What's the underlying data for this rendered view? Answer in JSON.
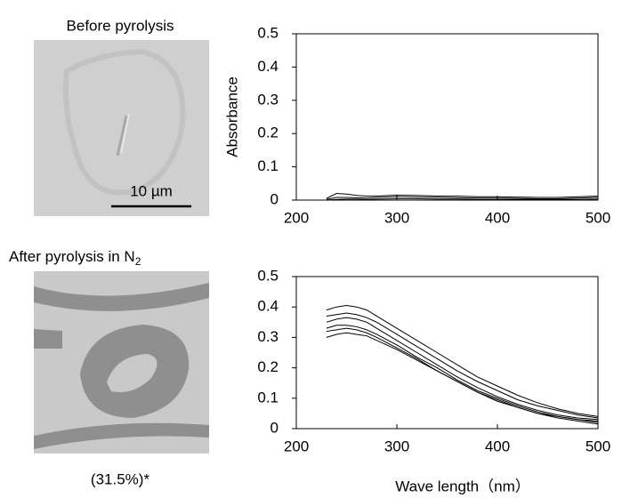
{
  "chart_data": [
    {
      "type": "line",
      "ylabel": "Absorbance",
      "x": [
        230,
        240,
        250,
        260,
        270,
        280,
        300,
        320,
        340,
        360,
        380,
        400,
        420,
        440,
        460,
        480,
        500
      ],
      "series": [
        {
          "color": "#000000",
          "values": [
            0.005,
            0.02,
            0.018,
            0.014,
            0.012,
            0.012,
            0.015,
            0.014,
            0.012,
            0.012,
            0.01,
            0.01,
            0.009,
            0.008,
            0.008,
            0.01,
            0.012
          ]
        },
        {
          "color": "#000000",
          "values": [
            0.002,
            0.008,
            0.008,
            0.007,
            0.006,
            0.008,
            0.01,
            0.009,
            0.008,
            0.007,
            0.006,
            0.006,
            0.005,
            0.004,
            0.004,
            0.006,
            0.008
          ]
        },
        {
          "color": "#000000",
          "values": [
            0.0,
            0.002,
            0.003,
            0.003,
            0.002,
            0.003,
            0.004,
            0.004,
            0.003,
            0.003,
            0.002,
            0.002,
            0.002,
            0.003,
            0.002,
            0.002,
            0.003
          ]
        }
      ],
      "xlim": [
        200,
        500
      ],
      "xticks": [
        200,
        300,
        400,
        500
      ],
      "ylim": [
        0,
        0.5
      ],
      "yticks": [
        0,
        0.1,
        0.2,
        0.3,
        0.4,
        0.5
      ]
    },
    {
      "type": "line",
      "xlabel": "Wave length（nm）",
      "x": [
        230,
        240,
        250,
        260,
        270,
        280,
        300,
        320,
        340,
        360,
        380,
        400,
        420,
        440,
        460,
        480,
        500
      ],
      "series": [
        {
          "color": "#000000",
          "values": [
            0.39,
            0.4,
            0.405,
            0.4,
            0.39,
            0.37,
            0.33,
            0.29,
            0.25,
            0.21,
            0.17,
            0.14,
            0.11,
            0.085,
            0.065,
            0.05,
            0.04
          ]
        },
        {
          "color": "#000000",
          "values": [
            0.37,
            0.375,
            0.38,
            0.375,
            0.365,
            0.35,
            0.31,
            0.27,
            0.23,
            0.19,
            0.155,
            0.125,
            0.095,
            0.075,
            0.06,
            0.045,
            0.035
          ]
        },
        {
          "color": "#000000",
          "values": [
            0.35,
            0.36,
            0.365,
            0.36,
            0.35,
            0.33,
            0.29,
            0.25,
            0.21,
            0.17,
            0.135,
            0.105,
            0.08,
            0.06,
            0.045,
            0.035,
            0.03
          ]
        },
        {
          "color": "#000000",
          "values": [
            0.33,
            0.34,
            0.34,
            0.335,
            0.325,
            0.31,
            0.275,
            0.235,
            0.2,
            0.16,
            0.125,
            0.1,
            0.075,
            0.055,
            0.04,
            0.03,
            0.025
          ]
        },
        {
          "color": "#000000",
          "values": [
            0.32,
            0.325,
            0.33,
            0.325,
            0.315,
            0.3,
            0.265,
            0.23,
            0.19,
            0.155,
            0.12,
            0.095,
            0.07,
            0.05,
            0.04,
            0.03,
            0.02
          ]
        },
        {
          "color": "#000000",
          "values": [
            0.3,
            0.31,
            0.315,
            0.31,
            0.305,
            0.29,
            0.26,
            0.225,
            0.19,
            0.155,
            0.12,
            0.09,
            0.07,
            0.05,
            0.035,
            0.025,
            0.015
          ]
        }
      ],
      "xlim": [
        200,
        500
      ],
      "xticks": [
        200,
        300,
        400,
        500
      ],
      "ylim": [
        0,
        0.5
      ],
      "yticks": [
        0,
        0.1,
        0.2,
        0.3,
        0.4,
        0.5
      ]
    }
  ],
  "images": [
    {
      "title": "Before pyrolysis",
      "scale_bar": "10 µm"
    },
    {
      "title": "After pyrolysis in N",
      "title_subscript": "2",
      "caption": "(31.5%)*"
    }
  ]
}
